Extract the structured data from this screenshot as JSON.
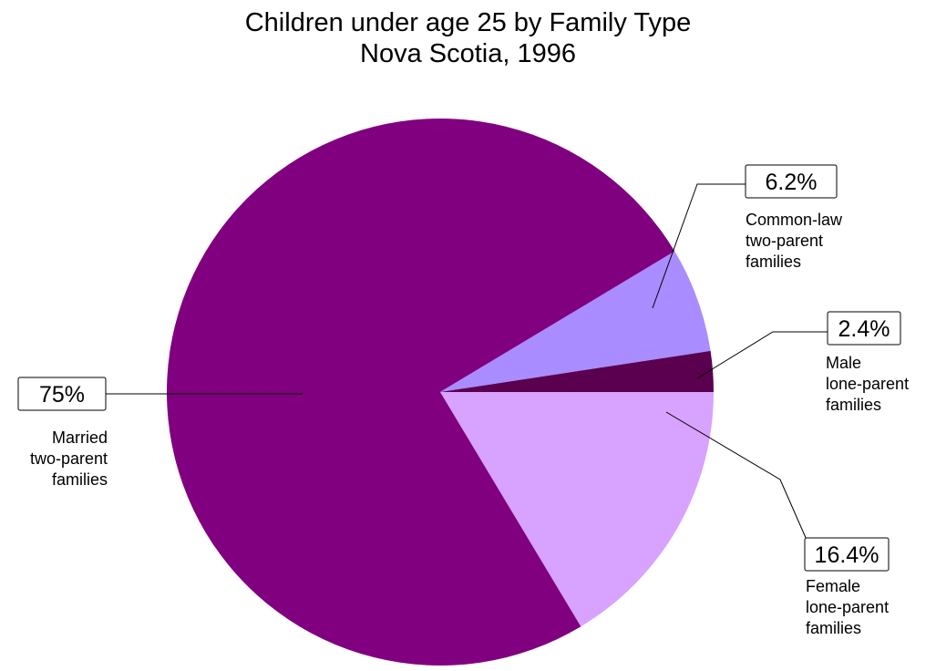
{
  "chart_data": {
    "type": "pie",
    "title": "Children under age 25 by Family Type",
    "subtitle": "Nova Scotia, 1996",
    "slices": [
      {
        "label_lines": [
          "Married",
          "two-parent",
          "families"
        ],
        "value": 75.0,
        "value_label": "75%",
        "color": "#800080"
      },
      {
        "label_lines": [
          "Common-law",
          "two-parent",
          "families"
        ],
        "value": 6.2,
        "value_label": "6.2%",
        "color": "#A98CFF"
      },
      {
        "label_lines": [
          "Male",
          "lone-parent",
          "families"
        ],
        "value": 2.4,
        "value_label": "2.4%",
        "color": "#5A004F"
      },
      {
        "label_lines": [
          "Female",
          "lone-parent",
          "families"
        ],
        "value": 16.4,
        "value_label": "16.4%",
        "color": "#D8A2FF"
      }
    ],
    "legend": "none"
  }
}
